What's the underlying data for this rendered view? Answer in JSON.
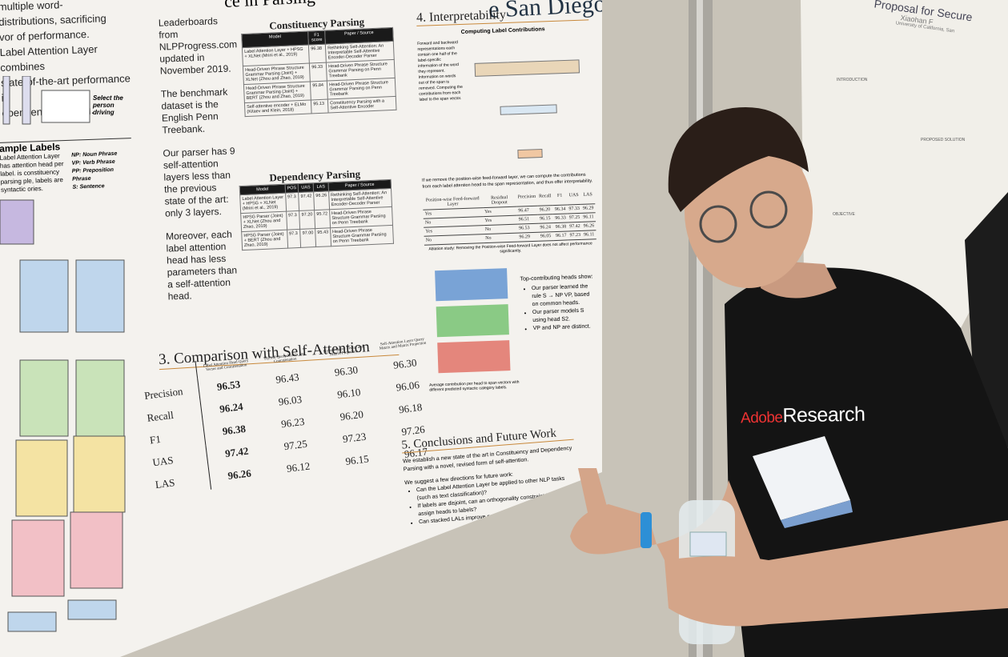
{
  "poster": {
    "header_fragment": "ce in Parsing",
    "header_right_fragment": "e San Diego",
    "intro_lines": [
      "multiple word-",
      "distributions, sacrificing",
      "vor of performance.",
      "Label Attention Layer combines",
      "state-of-the-art performance in",
      "ependency Parsing."
    ],
    "figure_caption": "Select the person driving",
    "example_labels": {
      "heading": "ample Labels",
      "text": "Label Attention Layer has attention head per label. is constituency parsing ple, labels are syntactic ories.",
      "legend": [
        "NP: Noun Phrase",
        "VP: Verb Phrase",
        "PP: Preposition Phrase",
        "S: Sentence"
      ]
    },
    "notes": [
      "Leaderboards from NLPProgress.com updated in November 2019.",
      "The benchmark dataset is the English Penn Treebank.",
      "Our parser has 9 self-attention layers less than the previous state of the art: only 3 layers.",
      "Moreover, each label attention head has less parameters than a self-attention head."
    ],
    "constituency": {
      "title": "Constituency Parsing",
      "header": [
        "Model",
        "F1 score",
        "Paper / Source"
      ],
      "rows": [
        [
          "Label Attention Layer + HPSG + XLNet (Mrini et al., 2019)",
          "96.38",
          "Rethinking Self-Attention: An Interpretable Self-Attentive Encoder-Decoder Parser"
        ],
        [
          "Head-Driven Phrase Structure Grammar Parsing (Joint) + XLNet (Zhou and Zhao, 2019)",
          "96.33",
          "Head-Driven Phrase Structure Grammar Parsing on Penn Treebank"
        ],
        [
          "Head-Driven Phrase Structure Grammar Parsing (Joint) + BERT (Zhou and Zhao, 2019)",
          "95.84",
          "Head-Driven Phrase Structure Grammar Parsing on Penn Treebank"
        ],
        [
          "Self-attentive encoder + ELMo (Kitaev and Klein, 2018)",
          "95.13",
          "Constituency Parsing with a Self-Attentive Encoder"
        ]
      ]
    },
    "dependency": {
      "title": "Dependency Parsing",
      "header": [
        "Model",
        "POS",
        "UAS",
        "LAS",
        "Paper / Source"
      ],
      "rows": [
        [
          "Label Attention Layer + HPSG + XLNet (Mrini et al., 2019)",
          "97.3",
          "97.42",
          "96.26",
          "Rethinking Self-Attention: An Interpretable Self-Attentive Encoder-Decoder Parser"
        ],
        [
          "HPSG Parser (Joint) + XLNet (Zhou and Zhao, 2019)",
          "97.3",
          "97.20",
          "95.72",
          "Head-Driven Phrase Structure Grammar Parsing on Penn Treebank"
        ],
        [
          "HPSG Parser (Joint) + BERT (Zhou and Zhao, 2019)",
          "97.3",
          "97.00",
          "95.43",
          "Head-Driven Phrase Structure Grammar Parsing on Penn Treebank"
        ]
      ]
    },
    "comparison": {
      "title": "3. Comparison with Self-Attention",
      "header": [
        "",
        "Label Attention Head Query Vector and Concatenation",
        "Hybrid Query Matrix and Concatenation",
        "Hybrid Query Vector and Matrix Projection",
        "Self-Attention Layer Query Matrix and Matrix Projection"
      ],
      "rows": [
        [
          "Precision",
          "96.53",
          "96.43",
          "96.30",
          "96.30"
        ],
        [
          "Recall",
          "96.24",
          "96.03",
          "96.10",
          "96.06"
        ],
        [
          "F1",
          "96.38",
          "96.23",
          "96.20",
          "96.18"
        ],
        [
          "UAS",
          "97.42",
          "97.25",
          "97.23",
          "97.26"
        ],
        [
          "LAS",
          "96.26",
          "96.12",
          "96.15",
          "96.17"
        ]
      ]
    },
    "interpretability": {
      "title": "4. Interpretability",
      "subtitle": "Computing Label Contributions",
      "side_text": "Forward and backward representations each contain one half of the label-specific information of the word they represent. Information on words out of the span is removed. Computing the contributions from each label to the span vector.",
      "explanation": "If we remove the position-wise feed-forward layer, we can compute the contributions from each label attention head to the span representation, and thus offer interpretability.",
      "ablation": {
        "header": [
          "Position-wise Feed-forward Layer",
          "Residual Dropout",
          "Precision",
          "Recall",
          "F1",
          "UAS",
          "LAS"
        ],
        "rows": [
          [
            "Yes",
            "Yes",
            "96.47",
            "96.20",
            "96.34",
            "97.33",
            "96.29"
          ],
          [
            "No",
            "Yes",
            "96.51",
            "96.15",
            "96.33",
            "97.25",
            "96.11"
          ],
          [
            "Yes",
            "No",
            "96.53",
            "96.24",
            "96.38",
            "97.42",
            "96.26"
          ],
          [
            "No",
            "No",
            "96.29",
            "96.05",
            "96.17",
            "97.23",
            "96.11"
          ]
        ]
      },
      "ablation_caption": "Ablation study: Removing the Position-wise Feed-forward Layer does not affect performance significantly.",
      "heads_heading": "Top-contributing heads show:",
      "heads_points": [
        "Our parser learned the rule S → NP VP, based on common heads.",
        "Our parser models S using head S2.",
        "VP and NP are distinct."
      ],
      "chart_caption": "Average contribution per head to span vectors with different predicted syntactic category labels."
    },
    "conclusions": {
      "title": "5. Conclusions and Future Work",
      "text": "We establish a new state of the art in Constituency and Dependency Parsing with a novel, revised form of self-attention.",
      "lead": "We suggest a few directions for future work:",
      "points": [
        "Can the Label Attention Layer be applied to other NLP tasks (such as text classification)?",
        "If labels are disjoint, can an orthogonality constraint help the LAL assign heads to labels?",
        "Can stacked LALs improve performance?"
      ]
    }
  },
  "second_poster": {
    "title": "Proposal for Secure",
    "author": "Xiaohan F",
    "affiliation": "University of California, San",
    "sections": [
      "INTRODUCTION",
      "PROPOSED SOLUTION",
      "OBJECTIVE"
    ]
  },
  "shirt": {
    "brand": "Adobe",
    "text": "Research"
  }
}
